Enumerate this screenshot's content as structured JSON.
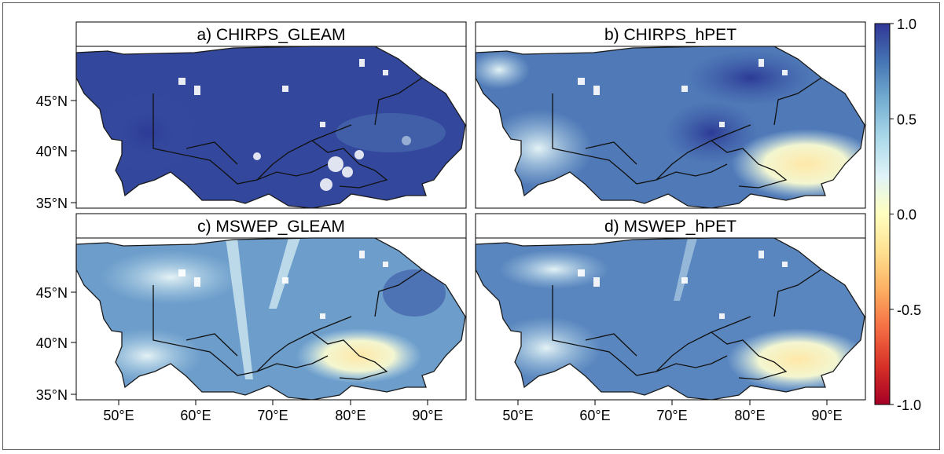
{
  "panels": [
    {
      "title": "a) CHIRPS_GLEAM",
      "pattern": "high"
    },
    {
      "title": "b) CHIRPS_hPET",
      "pattern": "mixed_hot"
    },
    {
      "title": "c) MSWEP_GLEAM",
      "pattern": "streaky"
    },
    {
      "title": "d) MSWEP_hPET",
      "pattern": "mixed_warm"
    }
  ],
  "axes": {
    "lat_ticks": [
      "45°N",
      "40°N",
      "35°N"
    ],
    "lon_ticks": [
      "50°E",
      "60°E",
      "70°E",
      "80°E",
      "90°E"
    ]
  },
  "colorbar": {
    "labels": [
      "1.0",
      "0.5",
      "0.0",
      "-0.5",
      "-1.0"
    ],
    "colors": [
      "#313695",
      "#4575b4",
      "#74add1",
      "#abd9e9",
      "#e0f3f8",
      "#ffffbf",
      "#fee090",
      "#fdae61",
      "#f46d43",
      "#d73027",
      "#a50026"
    ]
  }
}
